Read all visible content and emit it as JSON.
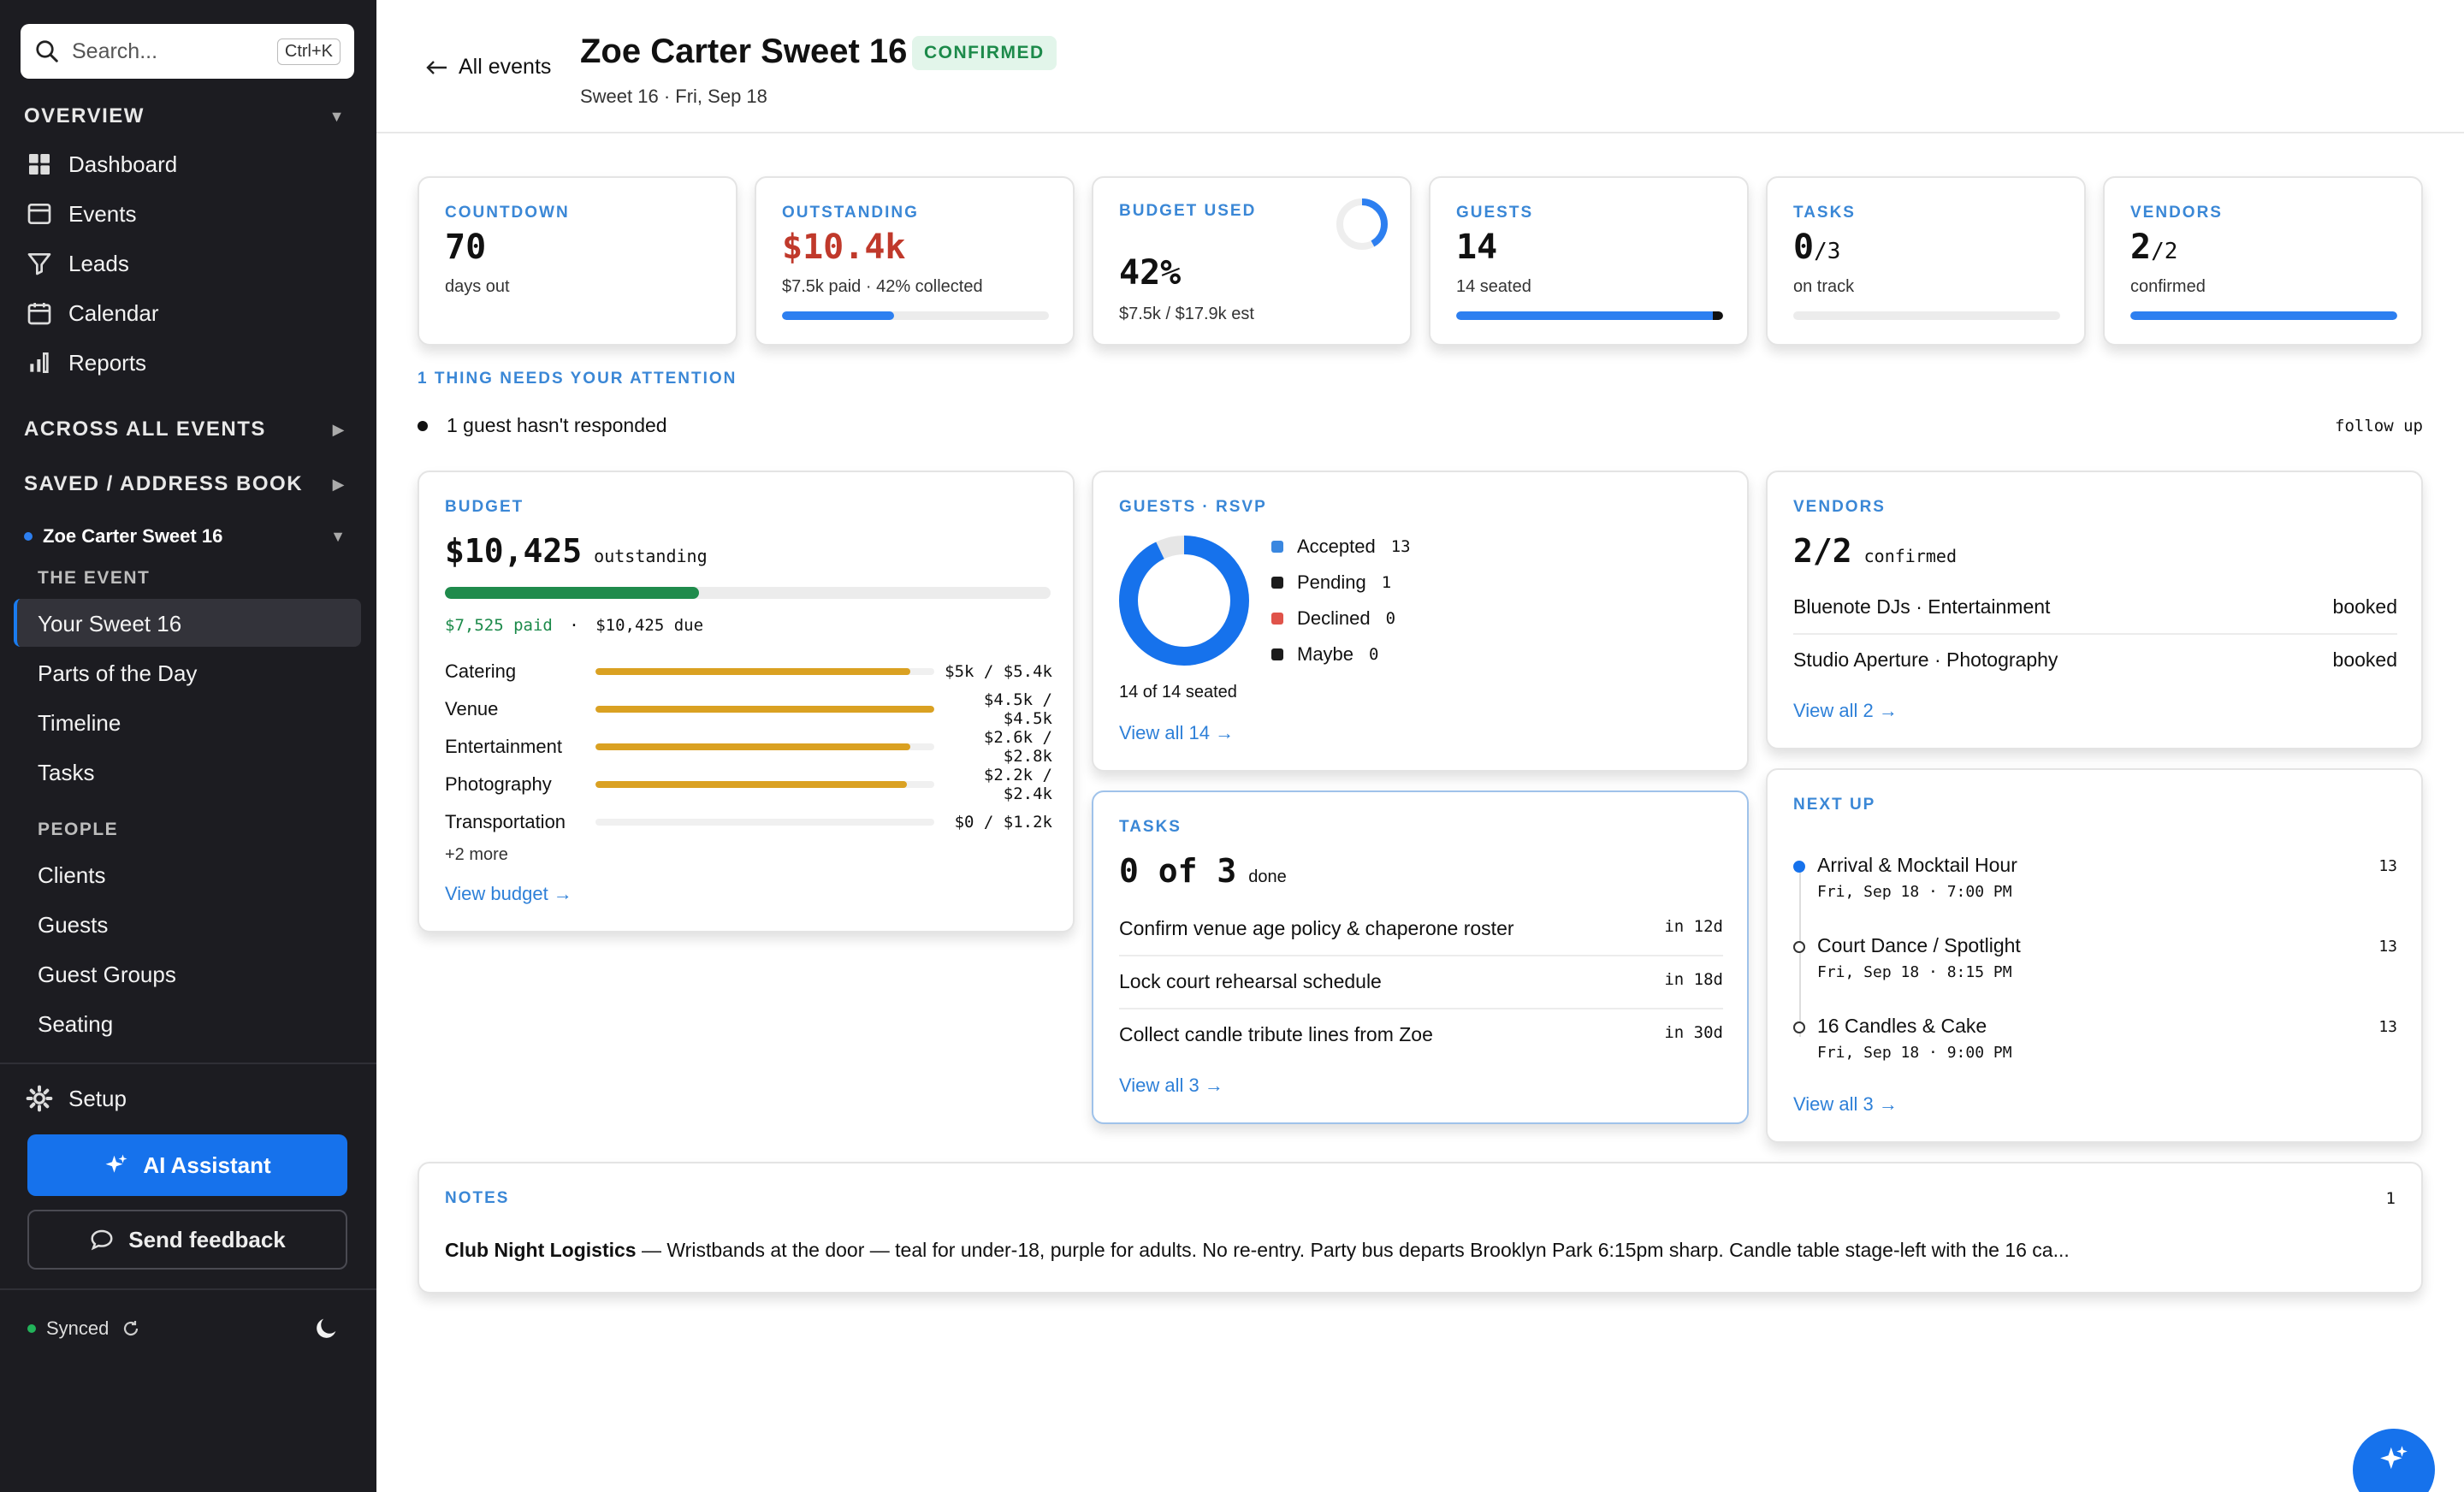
{
  "search": {
    "placeholder": "Search...",
    "shortcut": "Ctrl+K"
  },
  "sidebar": {
    "overview": "OVERVIEW",
    "nav": [
      "Dashboard",
      "Events",
      "Leads",
      "Calendar",
      "Reports"
    ],
    "across": "ACROSS ALL EVENTS",
    "saved": "SAVED / ADDRESS BOOK",
    "current_event": "Zoe Carter Sweet 16",
    "the_event": "THE EVENT",
    "event_items": [
      "Your Sweet 16",
      "Parts of the Day",
      "Timeline",
      "Tasks"
    ],
    "people": "PEOPLE",
    "people_items": [
      "Clients",
      "Guests",
      "Guest Groups",
      "Seating"
    ],
    "setup": "Setup",
    "ai_assistant": "AI Assistant",
    "feedback": "Send feedback",
    "synced": "Synced"
  },
  "header": {
    "back": "All events",
    "title": "Zoe Carter Sweet 16",
    "status": "CONFIRMED",
    "subtitle": "Sweet 16 · Fri, Sep 18"
  },
  "stats": {
    "countdown": {
      "label": "COUNTDOWN",
      "value": "70",
      "sub": "days out"
    },
    "outstanding": {
      "label": "OUTSTANDING",
      "value": "$10.4k",
      "sub": "$7.5k paid · 42% collected",
      "progress": 0.42
    },
    "budget_used": {
      "label": "BUDGET USED",
      "value": "42%",
      "sub": "$7.5k / $17.9k est",
      "progress": 0.42
    },
    "guests": {
      "label": "GUESTS",
      "value": "14",
      "sub": "14 seated",
      "progress": 1.0
    },
    "tasks": {
      "label": "TASKS",
      "value": "0",
      "denom": "/3",
      "sub": "on track",
      "progress": 0
    },
    "vendors": {
      "label": "VENDORS",
      "value": "2",
      "denom": "/2",
      "sub": "confirmed",
      "progress": 1.0
    }
  },
  "attention": {
    "label": "1 THING NEEDS YOUR ATTENTION",
    "item": "1 guest hasn't responded",
    "action": "follow up"
  },
  "budget": {
    "label": "BUDGET",
    "amount": "$10,425",
    "amount_sub": "outstanding",
    "paid": "$7,525 paid",
    "due": "$10,425 due",
    "paid_fraction": 0.42,
    "lines": [
      {
        "name": "Catering",
        "amount": "$5k / $5.4k",
        "fraction": 0.93
      },
      {
        "name": "Venue",
        "amount": "$4.5k / $4.5k",
        "fraction": 1.0
      },
      {
        "name": "Entertainment",
        "amount": "$2.6k / $2.8k",
        "fraction": 0.93
      },
      {
        "name": "Photography",
        "amount": "$2.2k / $2.4k",
        "fraction": 0.92
      },
      {
        "name": "Transportation",
        "amount": "$0 / $1.2k",
        "fraction": 0
      }
    ],
    "more": "+2 more",
    "link": "View budget →"
  },
  "rsvp": {
    "label": "GUESTS · RSVP",
    "legend": [
      {
        "name": "Accepted",
        "count": "13",
        "color": "#3a87e0"
      },
      {
        "name": "Pending",
        "count": "1",
        "color": "#1c1c1c"
      },
      {
        "name": "Declined",
        "count": "0",
        "color": "#e0534a"
      },
      {
        "name": "Maybe",
        "count": "0",
        "color": "#1c1c1c"
      }
    ],
    "accepted": 13,
    "total": 14,
    "seated": "14 of 14 seated",
    "link": "View all 14 →"
  },
  "vendors": {
    "label": "VENDORS",
    "count": "2/2",
    "count_sub": "confirmed",
    "items": [
      {
        "name": "Bluenote DJs · Entertainment",
        "status": "booked"
      },
      {
        "name": "Studio Aperture · Photography",
        "status": "booked"
      }
    ],
    "link": "View all 2 →"
  },
  "tasks": {
    "label": "TASKS",
    "count": "0 of 3",
    "count_sub": "done",
    "items": [
      {
        "name": "Confirm venue age policy & chaperone roster",
        "due": "in 12d"
      },
      {
        "name": "Lock court rehearsal schedule",
        "due": "in 18d"
      },
      {
        "name": "Collect candle tribute lines from Zoe",
        "due": "in 30d"
      }
    ],
    "link": "View all 3 →"
  },
  "next_up": {
    "label": "NEXT UP",
    "items": [
      {
        "name": "Arrival & Mocktail Hour",
        "when": "Fri, Sep 18 · 7:00 PM",
        "count": "13"
      },
      {
        "name": "Court Dance / Spotlight",
        "when": "Fri, Sep 18 · 8:15 PM",
        "count": "13"
      },
      {
        "name": "16 Candles & Cake",
        "when": "Fri, Sep 18 · 9:00 PM",
        "count": "13"
      }
    ],
    "link": "View all 3 →"
  },
  "notes": {
    "label": "NOTES",
    "count": "1",
    "title": "Club Night Logistics",
    "body": " — Wristbands at the door — teal for under-18, purple for adults. No re-entry. Party bus departs Brooklyn Park 6:15pm sharp. Candle table stage-left with the 16 ca..."
  },
  "icons": {
    "search": "search-icon",
    "dashboard": "grid-icon",
    "events": "inbox-icon",
    "leads": "funnel-icon",
    "calendar": "calendar-icon",
    "reports": "bar-chart-icon",
    "setup": "gear-icon",
    "ai": "sparkle-icon",
    "feedback": "chat-bubble-icon",
    "theme": "moon-icon"
  },
  "colors": {
    "accent": "#1672ec",
    "danger": "#c0392b",
    "success": "#1c8a4a",
    "budget_bar": "#daa122"
  }
}
